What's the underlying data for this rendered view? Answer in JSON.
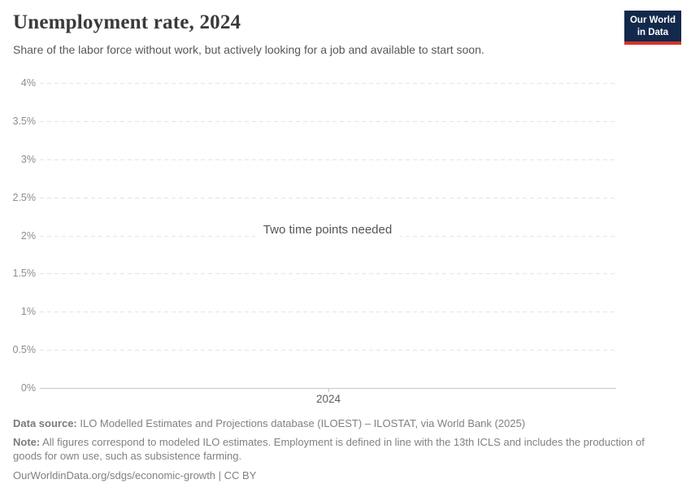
{
  "header": {
    "title": "Unemployment rate, 2024",
    "subtitle": "Share of the labor force without work, but actively looking for a job and available to start soon.",
    "logo": {
      "line1": "Our World",
      "line2": "in Data",
      "bg_color": "#12294b",
      "accent_color": "#d4342c"
    }
  },
  "chart_data": {
    "type": "line",
    "title": "Unemployment rate, 2024",
    "message": "Two time points needed",
    "series": [],
    "ylim": [
      0,
      4
    ],
    "yticks": [
      "0%",
      "0.5%",
      "1%",
      "1.5%",
      "2%",
      "2.5%",
      "3%",
      "3.5%",
      "4%"
    ],
    "xticks": [
      "2024"
    ],
    "grid": "horizontal-dashed",
    "legend": "none"
  },
  "footer": {
    "datasource_label": "Data source:",
    "datasource_text": " ILO Modelled Estimates and Projections database (ILOEST) – ILOSTAT, via World Bank (2025)",
    "note_label": "Note:",
    "note_text": " All figures correspond to modeled ILO estimates. Employment is defined in line with the 13th ICLS and includes the production of goods for own use, such as subsistence farming.",
    "url": "OurWorldinData.org/sdgs/economic-growth",
    "separator": " | ",
    "license": "CC BY"
  }
}
